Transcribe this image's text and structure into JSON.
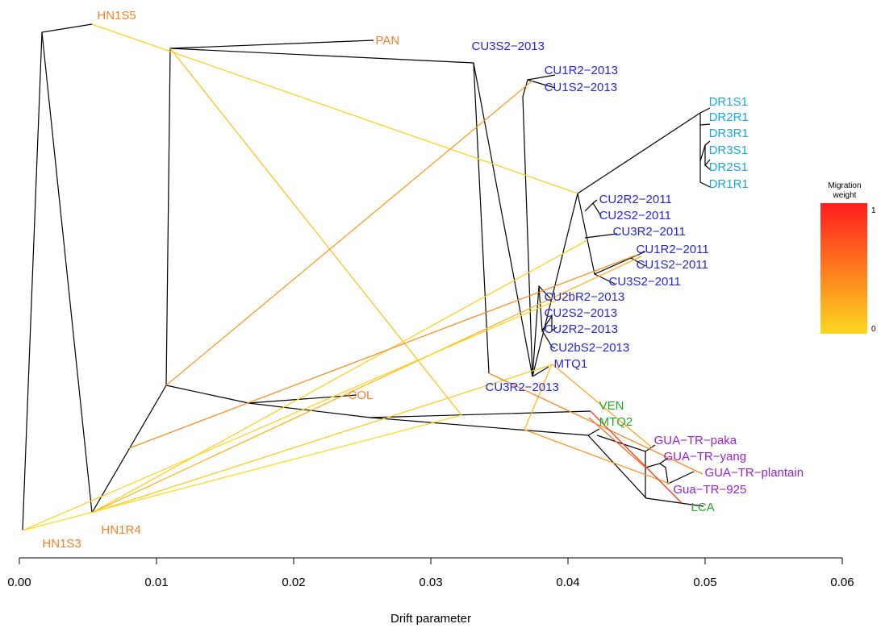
{
  "chart_data": {
    "type": "tree",
    "xlabel": "Drift parameter",
    "xlim": [
      0.0,
      0.06
    ],
    "x_ticks": [
      "0.00",
      "0.01",
      "0.02",
      "0.03",
      "0.04",
      "0.05",
      "0.06"
    ],
    "x_tick_values": [
      0.0,
      0.01,
      0.02,
      0.03,
      0.04,
      0.05,
      0.06
    ],
    "legend": {
      "title_line1": "Migration",
      "title_line2": "weight",
      "max_label": "1",
      "min_label": "0",
      "color_low": "#ffd81f",
      "color_high": "#ff1d1d"
    },
    "colors": {
      "orange": "#f77f29",
      "blue": "#2525e0",
      "cyan": "#18a8e0",
      "green": "#20a82a",
      "purple": "#9a1fd6",
      "edge": "#000000"
    },
    "tips": [
      {
        "label": "HN1S5",
        "x": 0.0052,
        "rank": 1,
        "color": "orange"
      },
      {
        "label": "PAN",
        "x": 0.0255,
        "rank": 2,
        "color": "orange"
      },
      {
        "label": "CU3S2−2013",
        "x": 0.0325,
        "rank": 3,
        "color": "blue"
      },
      {
        "label": "CU1R2−2013",
        "x": 0.0378,
        "rank": 4,
        "color": "blue"
      },
      {
        "label": "CU1S2−2013",
        "x": 0.0378,
        "rank": 5,
        "color": "blue"
      },
      {
        "label": "DR1S1",
        "x": 0.0498,
        "rank": 6,
        "color": "cyan"
      },
      {
        "label": "DR2R1",
        "x": 0.0498,
        "rank": 7,
        "color": "cyan"
      },
      {
        "label": "DR3R1",
        "x": 0.0498,
        "rank": 8,
        "color": "cyan"
      },
      {
        "label": "DR3S1",
        "x": 0.0498,
        "rank": 9,
        "color": "cyan"
      },
      {
        "label": "DR2S1",
        "x": 0.0498,
        "rank": 10,
        "color": "cyan"
      },
      {
        "label": "DR1R1",
        "x": 0.0498,
        "rank": 11,
        "color": "cyan"
      },
      {
        "label": "CU2R2−2011",
        "x": 0.0418,
        "rank": 12,
        "color": "blue"
      },
      {
        "label": "CU2S2−2011",
        "x": 0.0418,
        "rank": 13,
        "color": "blue"
      },
      {
        "label": "CU3R2−2011",
        "x": 0.0428,
        "rank": 14,
        "color": "blue"
      },
      {
        "label": "CU1R2−2011",
        "x": 0.0445,
        "rank": 15,
        "color": "blue"
      },
      {
        "label": "CU1S2−2011",
        "x": 0.0445,
        "rank": 16,
        "color": "blue"
      },
      {
        "label": "CU3S2−2011",
        "x": 0.0425,
        "rank": 17,
        "color": "blue"
      },
      {
        "label": "CU2bR2−2013",
        "x": 0.0378,
        "rank": 18,
        "color": "blue"
      },
      {
        "label": "CU2S2−2013",
        "x": 0.0378,
        "rank": 19,
        "color": "blue"
      },
      {
        "label": "CU2R2−2013",
        "x": 0.0378,
        "rank": 20,
        "color": "blue"
      },
      {
        "label": "CU2bS2−2013",
        "x": 0.0382,
        "rank": 21,
        "color": "blue"
      },
      {
        "label": "MTQ1",
        "x": 0.0385,
        "rank": 22,
        "color": "blue"
      },
      {
        "label": "COL",
        "x": 0.0235,
        "rank": 23,
        "color": "orange"
      },
      {
        "label": "CU3R2−2013",
        "x": 0.0335,
        "rank": 24,
        "color": "blue"
      },
      {
        "label": "VEN",
        "x": 0.0418,
        "rank": 25,
        "color": "green"
      },
      {
        "label": "MTQ2",
        "x": 0.0418,
        "rank": 26,
        "color": "green"
      },
      {
        "label": "GUA−TR−paka",
        "x": 0.0458,
        "rank": 27,
        "color": "purple"
      },
      {
        "label": "GUA−TR−yang",
        "x": 0.0465,
        "rank": 28,
        "color": "purple"
      },
      {
        "label": "GUA−TR−plantain",
        "x": 0.0495,
        "rank": 29,
        "color": "purple"
      },
      {
        "label": "Gua−TR−925",
        "x": 0.0472,
        "rank": 30,
        "color": "purple"
      },
      {
        "label": "LCA",
        "x": 0.0485,
        "rank": 31,
        "color": "green"
      },
      {
        "label": "HN1R4",
        "x": 0.0055,
        "rank": 32,
        "color": "orange"
      },
      {
        "label": "HN1S3",
        "x": 0.0012,
        "rank": 33,
        "color": "orange"
      }
    ]
  }
}
